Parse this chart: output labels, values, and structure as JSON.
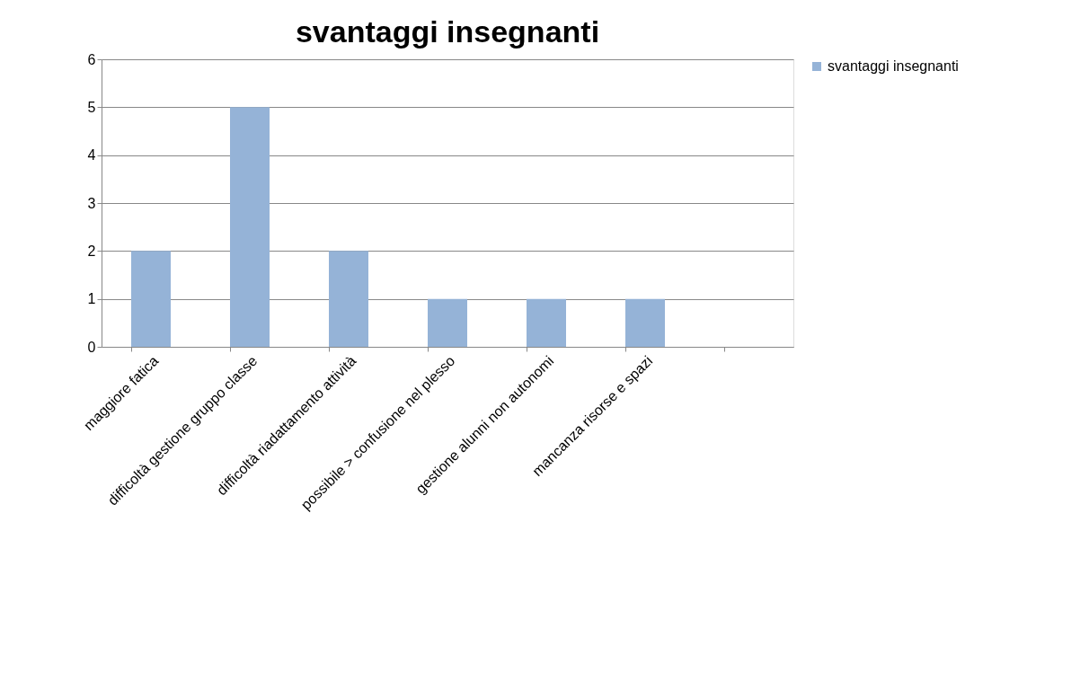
{
  "chart_data": {
    "type": "bar",
    "title": "svantaggi insegnanti",
    "categories": [
      "maggiore fatica",
      "difficoltà gestione gruppo classe",
      "difficoltà riadattamento attività",
      "possibile > confusione nel plesso",
      "gestione alunni non autonomi",
      "mancanza risorse e spazi",
      null
    ],
    "series": [
      {
        "name": "svantaggi insegnanti",
        "color": "#95b3d7",
        "values": [
          2,
          5,
          2,
          1,
          1,
          1,
          null
        ]
      }
    ],
    "ylim": [
      0,
      6
    ],
    "yticks": [
      0,
      1,
      2,
      3,
      4,
      5,
      6
    ],
    "grid": "y",
    "legend": "right"
  }
}
